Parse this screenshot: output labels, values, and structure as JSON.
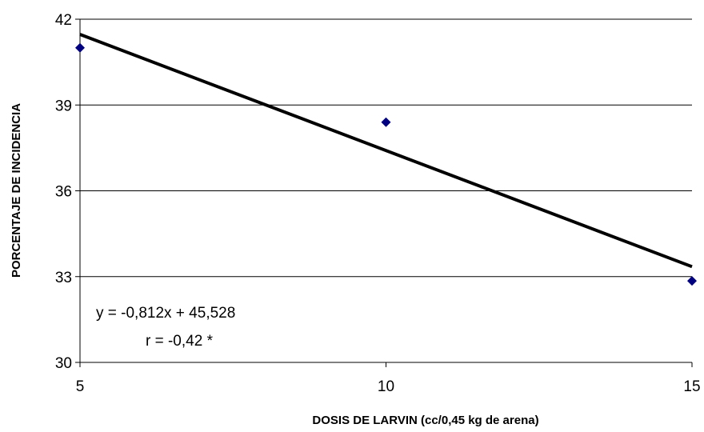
{
  "chart_data": {
    "type": "scatter",
    "title": "",
    "xlabel": "DOSIS DE LARVIN  (cc/0,45 kg de arena)",
    "ylabel": "PORCENTAJE DE INCIDENCIA",
    "xlim": [
      5,
      15
    ],
    "ylim": [
      30,
      42
    ],
    "xticks": [
      "5",
      "10",
      "15"
    ],
    "yticks": [
      "30",
      "33",
      "36",
      "39",
      "42"
    ],
    "grid": "horizontal",
    "legend": "none",
    "series": [
      {
        "points": [
          {
            "x": 5,
            "y": 41
          },
          {
            "x": 10,
            "y": 38.4
          },
          {
            "x": 15,
            "y": 32.85
          }
        ],
        "marker": "diamond",
        "color": "#000080"
      }
    ],
    "trendline": {
      "type": "linear",
      "slope": -0.812,
      "intercept": 45.528,
      "color": "#000000"
    },
    "annotations": [
      "y = -0,812x + 45,528",
      "r = -0,42 *"
    ]
  }
}
